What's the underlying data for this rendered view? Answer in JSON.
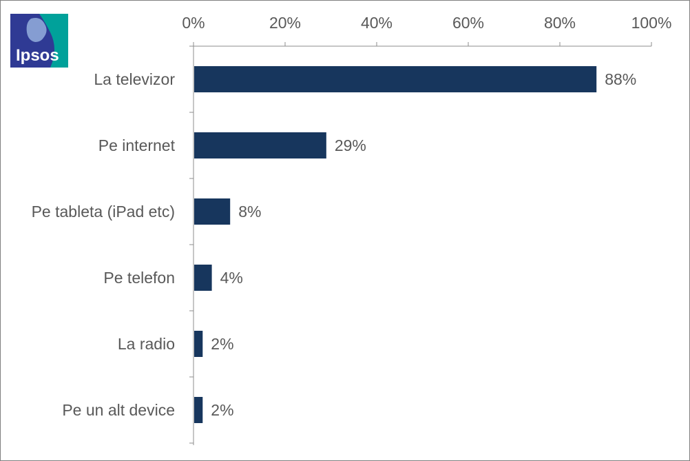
{
  "logo": {
    "text": "Ipsos"
  },
  "colors": {
    "bar": "#17365d",
    "logo_blue": "#2f3a94",
    "logo_teal": "#00a19a"
  },
  "chart_data": {
    "type": "bar",
    "orientation": "horizontal",
    "categories": [
      "La televizor",
      "Pe internet",
      "Pe tableta (iPad etc)",
      "Pe telefon",
      "La radio",
      "Pe un alt device"
    ],
    "values": [
      88,
      29,
      8,
      4,
      2,
      2
    ],
    "data_labels": [
      "88%",
      "29%",
      "8%",
      "4%",
      "2%",
      "2%"
    ],
    "xlim": [
      0,
      100
    ],
    "x_ticks": [
      0,
      20,
      40,
      60,
      80,
      100
    ],
    "x_tick_labels": [
      "0%",
      "20%",
      "40%",
      "60%",
      "80%",
      "100%"
    ],
    "x_axis_position": "top",
    "grid": false,
    "legend": "none"
  }
}
